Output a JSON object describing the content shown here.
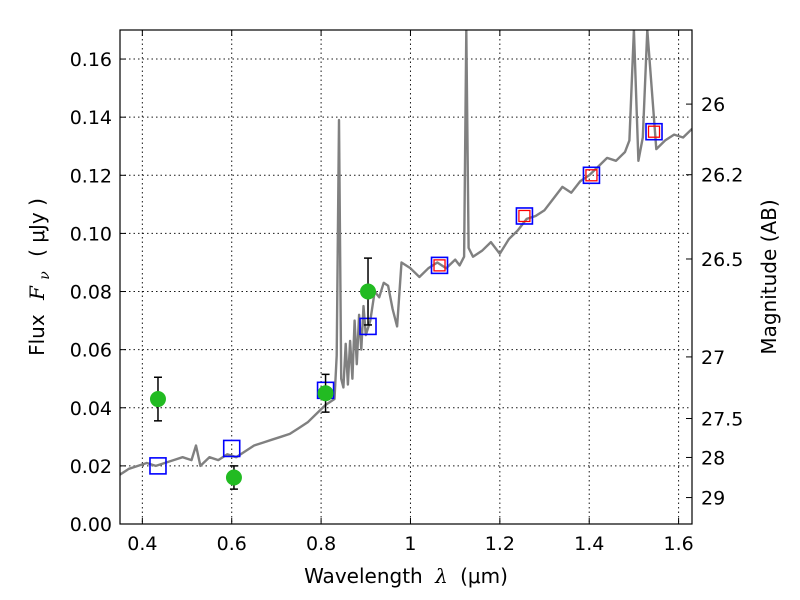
{
  "chart_data": {
    "type": "scatter",
    "xlabel_prefix": "Wavelength",
    "xlabel_var": "λ",
    "xlabel_units": "(μm)",
    "ylabel_prefix": "Flux",
    "ylabel_var": "F",
    "ylabel_sub": "ν",
    "ylabel_units": "( μJy )",
    "y2label": "Magnitude (AB)",
    "xlim": [
      0.35,
      1.63
    ],
    "ylim": [
      0.0,
      0.17
    ],
    "grid": true,
    "x_ticks": [
      {
        "value": 0.4,
        "label": "0.4"
      },
      {
        "value": 0.6,
        "label": "0.6"
      },
      {
        "value": 0.8,
        "label": "0.8"
      },
      {
        "value": 1.0,
        "label": "1"
      },
      {
        "value": 1.2,
        "label": "1.2"
      },
      {
        "value": 1.4,
        "label": "1.4"
      },
      {
        "value": 1.6,
        "label": "1.6"
      }
    ],
    "y_ticks": [
      {
        "value": 0.0,
        "label": "0.00"
      },
      {
        "value": 0.02,
        "label": "0.02"
      },
      {
        "value": 0.04,
        "label": "0.04"
      },
      {
        "value": 0.06,
        "label": "0.06"
      },
      {
        "value": 0.08,
        "label": "0.08"
      },
      {
        "value": 0.1,
        "label": "0.10"
      },
      {
        "value": 0.12,
        "label": "0.12"
      },
      {
        "value": 0.14,
        "label": "0.14"
      },
      {
        "value": 0.16,
        "label": "0.16"
      }
    ],
    "y2_ticks": [
      {
        "label": "26",
        "flux": 0.1445
      },
      {
        "label": "26.2",
        "flux": 0.1202
      },
      {
        "label": "26.5",
        "flux": 0.0912
      },
      {
        "label": "27",
        "flux": 0.0575
      },
      {
        "label": "27.5",
        "flux": 0.0363
      },
      {
        "label": "28",
        "flux": 0.0229
      },
      {
        "label": "29",
        "flux": 0.0091
      }
    ],
    "series": [
      {
        "name": "model-spectrum",
        "kind": "line",
        "color": "#808080",
        "x": [
          0.35,
          0.37,
          0.39,
          0.41,
          0.43,
          0.45,
          0.47,
          0.49,
          0.51,
          0.52,
          0.53,
          0.55,
          0.57,
          0.59,
          0.61,
          0.63,
          0.65,
          0.67,
          0.69,
          0.71,
          0.73,
          0.75,
          0.77,
          0.79,
          0.81,
          0.82,
          0.83,
          0.835,
          0.84,
          0.845,
          0.85,
          0.855,
          0.86,
          0.865,
          0.87,
          0.875,
          0.88,
          0.885,
          0.89,
          0.895,
          0.9,
          0.91,
          0.92,
          0.93,
          0.94,
          0.95,
          0.96,
          0.97,
          0.98,
          1.0,
          1.02,
          1.04,
          1.06,
          1.08,
          1.1,
          1.11,
          1.12,
          1.125,
          1.13,
          1.14,
          1.16,
          1.18,
          1.2,
          1.22,
          1.24,
          1.26,
          1.28,
          1.3,
          1.32,
          1.34,
          1.36,
          1.38,
          1.4,
          1.42,
          1.44,
          1.46,
          1.48,
          1.49,
          1.5,
          1.51,
          1.52,
          1.53,
          1.55,
          1.57,
          1.59,
          1.61,
          1.63
        ],
        "y": [
          0.017,
          0.019,
          0.02,
          0.021,
          0.02,
          0.021,
          0.022,
          0.023,
          0.022,
          0.027,
          0.02,
          0.023,
          0.022,
          0.024,
          0.023,
          0.025,
          0.027,
          0.028,
          0.029,
          0.03,
          0.031,
          0.033,
          0.035,
          0.038,
          0.041,
          0.042,
          0.043,
          0.058,
          0.139,
          0.05,
          0.047,
          0.062,
          0.048,
          0.063,
          0.05,
          0.07,
          0.055,
          0.072,
          0.06,
          0.075,
          0.065,
          0.07,
          0.08,
          0.078,
          0.083,
          0.082,
          0.074,
          0.068,
          0.09,
          0.088,
          0.085,
          0.088,
          0.09,
          0.088,
          0.091,
          0.089,
          0.092,
          0.17,
          0.095,
          0.092,
          0.094,
          0.097,
          0.093,
          0.098,
          0.101,
          0.105,
          0.106,
          0.108,
          0.112,
          0.116,
          0.114,
          0.118,
          0.12,
          0.123,
          0.126,
          0.125,
          0.128,
          0.132,
          0.17,
          0.125,
          0.133,
          0.17,
          0.129,
          0.132,
          0.134,
          0.133,
          0.136
        ]
      },
      {
        "name": "model-photometry",
        "kind": "open-square",
        "color": "#0000ff",
        "x": [
          0.435,
          0.6,
          0.81,
          0.905,
          1.065,
          1.255,
          1.405,
          1.545
        ],
        "y": [
          0.02,
          0.026,
          0.046,
          0.068,
          0.089,
          0.106,
          0.12,
          0.135
        ]
      },
      {
        "name": "model-photometry-inner",
        "kind": "open-square-small",
        "color": "#ff0000",
        "x": [
          1.065,
          1.255,
          1.405,
          1.545
        ],
        "y": [
          0.089,
          0.106,
          0.12,
          0.135
        ]
      },
      {
        "name": "observed-photometry",
        "kind": "filled-circle",
        "color": "#22bb22",
        "x": [
          0.435,
          0.605,
          0.81,
          0.905
        ],
        "y": [
          0.043,
          0.016,
          0.045,
          0.08
        ],
        "yerr": [
          0.0075,
          0.004,
          0.0065,
          0.0115
        ]
      }
    ]
  }
}
